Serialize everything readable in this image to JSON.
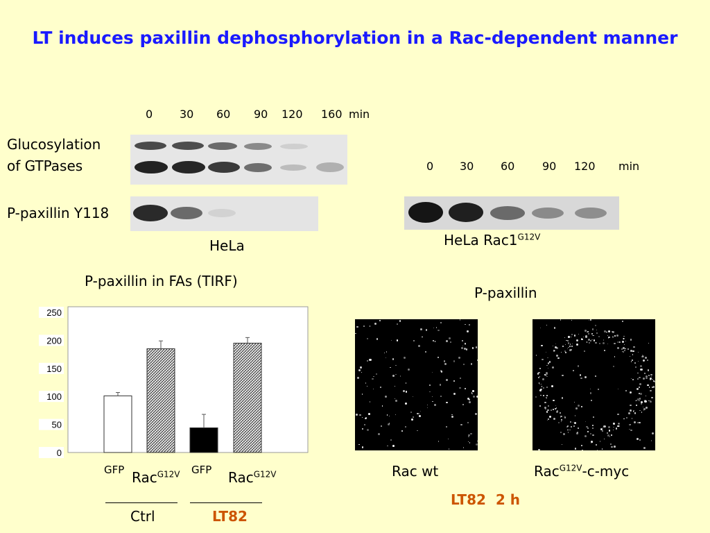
{
  "title": "LT induces paxillin dephosphorylation in a Rac-dependent manner",
  "blot_left": {
    "timepoints": [
      "0",
      "30",
      "60",
      "90",
      "120",
      "160"
    ],
    "time_unit": "min",
    "row1_label_line1": "Glucosylation",
    "row1_label_line2": "of GTPases",
    "row2_label": "P-paxillin Y118",
    "cell_label": "HeLa"
  },
  "blot_right": {
    "timepoints": [
      "0",
      "30",
      "60",
      "90",
      "120"
    ],
    "time_unit": "min",
    "cell_label": "HeLa Rac1",
    "cell_label_sup": "G12V"
  },
  "chart_data": {
    "type": "bar",
    "title": "P-paxillin in FAs (TIRF)",
    "categories": [
      "GFP",
      "Rac G12V",
      "GFP",
      "Rac G12V"
    ],
    "values": [
      101,
      185,
      44,
      195
    ],
    "errors": [
      6,
      14,
      24,
      10
    ],
    "fills": [
      "white",
      "hatched",
      "black",
      "hatched"
    ],
    "ylim": [
      0,
      250
    ],
    "yticks": [
      "0",
      "50",
      "100",
      "150",
      "200",
      "250"
    ],
    "groups": [
      "Ctrl",
      "LT82"
    ]
  },
  "chart_labels": {
    "gfp": "GFP",
    "rac": "Rac",
    "sup": "G12V",
    "ctrl": "Ctrl",
    "lt82": "LT82"
  },
  "micro": {
    "title": "P-paxillin",
    "left_label": "Rac wt",
    "right_label_main": "Rac",
    "right_label_sup": "G12V",
    "right_label_tail": "-c-myc",
    "condition": "LT82  2 h"
  }
}
